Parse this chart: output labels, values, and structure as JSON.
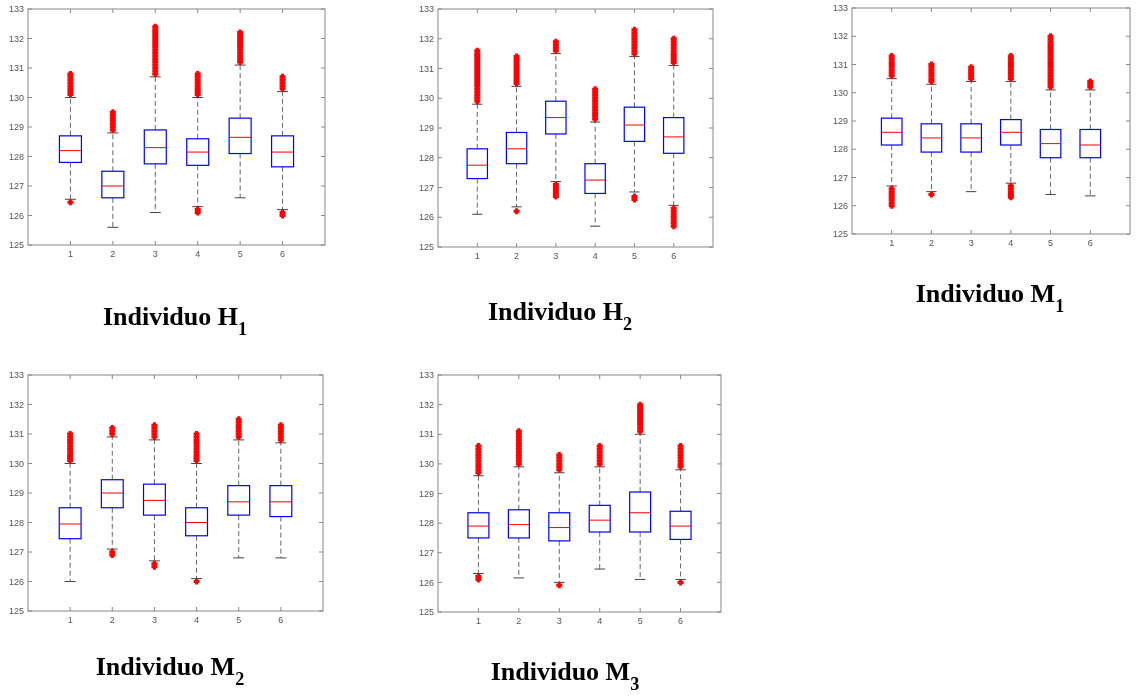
{
  "chart_data": [
    {
      "type": "box",
      "title": "Individuo H$_{1}$",
      "categories": [
        "1",
        "2",
        "3",
        "4",
        "5",
        "6"
      ],
      "ylim": [
        125,
        133
      ],
      "yticks": [
        125,
        126,
        127,
        128,
        129,
        130,
        131,
        132,
        133
      ],
      "color": "#0000ff",
      "boxes": [
        {
          "low": 126.55,
          "q1": 127.8,
          "median": 128.2,
          "q3": 128.7,
          "high": 130.0,
          "outliers": [
            126.45,
            130.1,
            130.2,
            130.3,
            130.4,
            130.5,
            130.6,
            130.7,
            130.8
          ]
        },
        {
          "low": 125.6,
          "q1": 126.6,
          "median": 127.0,
          "q3": 127.5,
          "high": 128.8,
          "outliers": [
            128.9,
            129.0,
            129.1,
            129.2,
            129.3,
            129.4,
            129.5
          ]
        },
        {
          "low": 126.1,
          "q1": 127.75,
          "median": 128.3,
          "q3": 128.9,
          "high": 130.7,
          "outliers": [
            130.8,
            130.9,
            131.0,
            131.1,
            131.2,
            131.3,
            131.4,
            131.5,
            131.6,
            131.7,
            131.8,
            131.9,
            132.0,
            132.1,
            132.2,
            132.3,
            132.4
          ]
        },
        {
          "low": 126.3,
          "q1": 127.7,
          "median": 128.15,
          "q3": 128.6,
          "high": 130.0,
          "outliers": [
            126.1,
            126.2,
            130.1,
            130.2,
            130.3,
            130.4,
            130.5,
            130.6,
            130.7,
            130.8
          ]
        },
        {
          "low": 126.6,
          "q1": 128.1,
          "median": 128.65,
          "q3": 129.3,
          "high": 131.1,
          "outliers": [
            131.2,
            131.3,
            131.4,
            131.5,
            131.6,
            131.7,
            131.8,
            131.9,
            132.0,
            132.1,
            132.2
          ]
        },
        {
          "low": 126.2,
          "q1": 127.65,
          "median": 128.15,
          "q3": 128.7,
          "high": 130.2,
          "outliers": [
            126.0,
            126.1,
            130.3,
            130.4,
            130.5,
            130.6,
            130.7
          ]
        }
      ]
    },
    {
      "type": "box",
      "title": "Individuo H$_{2}$",
      "categories": [
        "1",
        "2",
        "3",
        "4",
        "5",
        "6"
      ],
      "ylim": [
        125,
        133
      ],
      "yticks": [
        125,
        126,
        127,
        128,
        129,
        130,
        131,
        132,
        133
      ],
      "color": "#0000ff",
      "boxes": [
        {
          "low": 126.1,
          "q1": 127.3,
          "median": 127.75,
          "q3": 128.3,
          "high": 129.8,
          "outliers": [
            129.9,
            130.0,
            130.1,
            130.2,
            130.3,
            130.4,
            130.5,
            130.6,
            130.7,
            130.8,
            130.9,
            131.0,
            131.1,
            131.2,
            131.3,
            131.4,
            131.5,
            131.6
          ]
        },
        {
          "low": 126.35,
          "q1": 127.8,
          "median": 128.3,
          "q3": 128.85,
          "high": 130.4,
          "outliers": [
            126.2,
            130.5,
            130.6,
            130.7,
            130.8,
            130.9,
            131.0,
            131.1,
            131.2,
            131.3,
            131.4
          ]
        },
        {
          "low": 127.2,
          "q1": 128.8,
          "median": 129.35,
          "q3": 129.9,
          "high": 131.5,
          "outliers": [
            126.7,
            126.8,
            126.9,
            127.0,
            127.1,
            131.6,
            131.7,
            131.8,
            131.9
          ]
        },
        {
          "low": 125.7,
          "q1": 126.8,
          "median": 127.25,
          "q3": 127.8,
          "high": 129.2,
          "outliers": [
            129.3,
            129.4,
            129.5,
            129.6,
            129.7,
            129.8,
            129.9,
            130.0,
            130.1,
            130.2,
            130.3
          ]
        },
        {
          "low": 126.85,
          "q1": 128.55,
          "median": 129.1,
          "q3": 129.7,
          "high": 131.4,
          "outliers": [
            126.6,
            126.7,
            131.5,
            131.6,
            131.7,
            131.8,
            131.9,
            132.0,
            132.1,
            132.2,
            132.3
          ]
        },
        {
          "low": 126.4,
          "q1": 128.15,
          "median": 128.7,
          "q3": 129.35,
          "high": 131.1,
          "outliers": [
            125.7,
            125.8,
            125.9,
            126.0,
            126.1,
            126.2,
            126.3,
            131.2,
            131.3,
            131.4,
            131.5,
            131.6,
            131.7,
            131.8,
            131.9,
            132.0
          ]
        }
      ]
    },
    {
      "type": "box",
      "title": "Individuo M$_{1}$",
      "categories": [
        "1",
        "2",
        "3",
        "4",
        "5",
        "6"
      ],
      "ylim": [
        125,
        133
      ],
      "yticks": [
        125,
        126,
        127,
        128,
        129,
        130,
        131,
        132,
        133
      ],
      "color": "#0000ff",
      "boxes": [
        {
          "low": 126.7,
          "q1": 128.15,
          "median": 128.6,
          "q3": 129.1,
          "high": 130.5,
          "outliers": [
            126.0,
            126.1,
            126.2,
            126.3,
            126.4,
            126.5,
            126.6,
            130.6,
            130.7,
            130.8,
            130.9,
            131.0,
            131.1,
            131.2,
            131.3
          ]
        },
        {
          "low": 126.5,
          "q1": 127.9,
          "median": 128.4,
          "q3": 128.9,
          "high": 130.3,
          "outliers": [
            126.4,
            130.4,
            130.5,
            130.6,
            130.7,
            130.8,
            130.9,
            131.0
          ]
        },
        {
          "low": 126.5,
          "q1": 127.9,
          "median": 128.4,
          "q3": 128.9,
          "high": 130.4,
          "outliers": [
            130.5,
            130.6,
            130.7,
            130.8,
            130.9
          ]
        },
        {
          "low": 126.8,
          "q1": 128.15,
          "median": 128.6,
          "q3": 129.05,
          "high": 130.4,
          "outliers": [
            126.3,
            126.4,
            126.5,
            126.6,
            126.7,
            130.5,
            130.6,
            130.7,
            130.8,
            130.9,
            131.0,
            131.1,
            131.2,
            131.3
          ]
        },
        {
          "low": 126.4,
          "q1": 127.7,
          "median": 128.2,
          "q3": 128.7,
          "high": 130.1,
          "outliers": [
            130.2,
            130.3,
            130.4,
            130.5,
            130.6,
            130.7,
            130.8,
            130.9,
            131.0,
            131.1,
            131.2,
            131.3,
            131.4,
            131.5,
            131.6,
            131.7,
            131.8,
            131.9,
            132.0
          ]
        },
        {
          "low": 126.35,
          "q1": 127.7,
          "median": 128.15,
          "q3": 128.7,
          "high": 130.1,
          "outliers": [
            130.2,
            130.3,
            130.4
          ]
        }
      ]
    },
    {
      "type": "box",
      "title": "Individuo M$_{2}$",
      "categories": [
        "1",
        "2",
        "3",
        "4",
        "5",
        "6"
      ],
      "ylim": [
        125,
        133
      ],
      "yticks": [
        125,
        126,
        127,
        128,
        129,
        130,
        131,
        132,
        133
      ],
      "color": "#0000ff",
      "boxes": [
        {
          "low": 126.0,
          "q1": 127.45,
          "median": 127.95,
          "q3": 128.5,
          "high": 130.0,
          "outliers": [
            130.1,
            130.2,
            130.3,
            130.4,
            130.5,
            130.6,
            130.7,
            130.8,
            130.9,
            131.0
          ]
        },
        {
          "low": 127.1,
          "q1": 128.5,
          "median": 129.0,
          "q3": 129.45,
          "high": 130.9,
          "outliers": [
            126.9,
            127.0,
            131.0,
            131.1,
            131.2
          ]
        },
        {
          "low": 126.7,
          "q1": 128.25,
          "median": 128.75,
          "q3": 129.3,
          "high": 130.8,
          "outliers": [
            126.5,
            126.6,
            130.9,
            131.0,
            131.1,
            131.2,
            131.3
          ]
        },
        {
          "low": 126.1,
          "q1": 127.55,
          "median": 128.0,
          "q3": 128.5,
          "high": 130.0,
          "outliers": [
            126.0,
            130.1,
            130.2,
            130.3,
            130.4,
            130.5,
            130.6,
            130.7,
            130.8,
            130.9,
            131.0
          ]
        },
        {
          "low": 126.8,
          "q1": 128.25,
          "median": 128.7,
          "q3": 129.25,
          "high": 130.8,
          "outliers": [
            130.9,
            131.0,
            131.1,
            131.2,
            131.3,
            131.4,
            131.5
          ]
        },
        {
          "low": 126.8,
          "q1": 128.2,
          "median": 128.7,
          "q3": 129.25,
          "high": 130.7,
          "outliers": [
            130.8,
            130.9,
            131.0,
            131.1,
            131.2,
            131.3
          ]
        }
      ]
    },
    {
      "type": "box",
      "title": "Individuo M$_{3}$",
      "categories": [
        "1",
        "2",
        "3",
        "4",
        "5",
        "6"
      ],
      "ylim": [
        125,
        133
      ],
      "yticks": [
        125,
        126,
        127,
        128,
        129,
        130,
        131,
        132,
        133
      ],
      "color": "#0000ff",
      "boxes": [
        {
          "low": 126.3,
          "q1": 127.5,
          "median": 127.9,
          "q3": 128.35,
          "high": 129.6,
          "outliers": [
            126.1,
            126.2,
            129.7,
            129.8,
            129.9,
            130.0,
            130.1,
            130.2,
            130.3,
            130.4,
            130.5,
            130.6
          ]
        },
        {
          "low": 126.15,
          "q1": 127.5,
          "median": 127.95,
          "q3": 128.45,
          "high": 129.9,
          "outliers": [
            130.0,
            130.1,
            130.2,
            130.3,
            130.4,
            130.5,
            130.6,
            130.7,
            130.8,
            130.9,
            131.0,
            131.1
          ]
        },
        {
          "low": 126.0,
          "q1": 127.4,
          "median": 127.85,
          "q3": 128.35,
          "high": 129.7,
          "outliers": [
            125.9,
            129.8,
            129.9,
            130.0,
            130.1,
            130.2,
            130.3
          ]
        },
        {
          "low": 126.45,
          "q1": 127.7,
          "median": 128.1,
          "q3": 128.6,
          "high": 129.9,
          "outliers": [
            130.0,
            130.1,
            130.2,
            130.3,
            130.4,
            130.5,
            130.6
          ]
        },
        {
          "low": 126.1,
          "q1": 127.7,
          "median": 128.35,
          "q3": 129.05,
          "high": 131.0,
          "outliers": [
            131.1,
            131.2,
            131.3,
            131.4,
            131.5,
            131.6,
            131.7,
            131.8,
            131.9,
            132.0
          ]
        },
        {
          "low": 126.1,
          "q1": 127.45,
          "median": 127.9,
          "q3": 128.4,
          "high": 129.8,
          "outliers": [
            126.0,
            129.9,
            130.0,
            130.1,
            130.2,
            130.3,
            130.4,
            130.5,
            130.6
          ]
        }
      ]
    }
  ]
}
